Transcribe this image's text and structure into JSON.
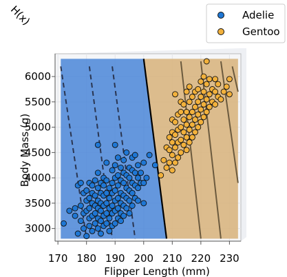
{
  "chart_data": {
    "type": "scatter",
    "title": "",
    "xlabel": "Flipper Length (mm)",
    "ylabel": "Body Mass (g)",
    "zlabel": "H(x)",
    "xlim": [
      169,
      234
    ],
    "ylim": [
      2750,
      6450
    ],
    "xticks": [
      170,
      180,
      190,
      200,
      210,
      220,
      230
    ],
    "yticks": [
      3000,
      3500,
      4000,
      4500,
      5000,
      5500,
      6000
    ],
    "xtick_labels": [
      "170",
      "180",
      "190",
      "200",
      "210",
      "220",
      "230"
    ],
    "ytick_labels": [
      "3000",
      "3500",
      "4000",
      "4500",
      "5000",
      "5500",
      "6000"
    ],
    "grid": true,
    "legend_position": "top-right",
    "decision_boundary": {
      "type": "linear",
      "points": [
        [
          200,
          6350
        ],
        [
          208,
          2800
        ]
      ]
    },
    "regions": [
      {
        "class": "Adelie",
        "color": "#4a86d8"
      },
      {
        "class": "Gentoo",
        "color": "#d7b27a"
      }
    ],
    "contour_lines": {
      "adelie_side": [
        [
          [
            171,
            6200
          ],
          [
            180,
            2800
          ]
        ],
        [
          [
            181,
            6200
          ],
          [
            189,
            2800
          ]
        ],
        [
          [
            189,
            6200
          ],
          [
            197,
            2800
          ]
        ]
      ],
      "gentoo_side": [
        [
          [
            213,
            6300
          ],
          [
            220,
            2800
          ]
        ],
        [
          [
            220,
            6300
          ],
          [
            227,
            2800
          ]
        ],
        [
          [
            227,
            6300
          ],
          [
            233,
            3900
          ]
        ],
        [
          [
            231,
            6200
          ],
          [
            233,
            5700
          ]
        ]
      ]
    },
    "series": [
      {
        "name": "Adelie",
        "color": "#1f77d4",
        "points": [
          [
            172,
            3100
          ],
          [
            174,
            3350
          ],
          [
            176,
            3400
          ],
          [
            176,
            3250
          ],
          [
            177,
            2900
          ],
          [
            177,
            3850
          ],
          [
            178,
            3150
          ],
          [
            178,
            3450
          ],
          [
            178,
            3900
          ],
          [
            179,
            3000
          ],
          [
            179,
            3300
          ],
          [
            179,
            3700
          ],
          [
            180,
            2850
          ],
          [
            180,
            3350
          ],
          [
            180,
            3550
          ],
          [
            180,
            3750
          ],
          [
            181,
            3050
          ],
          [
            181,
            3200
          ],
          [
            181,
            3400
          ],
          [
            181,
            3600
          ],
          [
            181,
            3900
          ],
          [
            182,
            2950
          ],
          [
            182,
            3250
          ],
          [
            182,
            3500
          ],
          [
            182,
            3700
          ],
          [
            182,
            3850
          ],
          [
            183,
            3100
          ],
          [
            183,
            3300
          ],
          [
            183,
            3450
          ],
          [
            183,
            3650
          ],
          [
            183,
            3950
          ],
          [
            184,
            3000
          ],
          [
            184,
            3200
          ],
          [
            184,
            3400
          ],
          [
            184,
            3550
          ],
          [
            184,
            3800
          ],
          [
            184,
            4100
          ],
          [
            184,
            4650
          ],
          [
            185,
            2900
          ],
          [
            185,
            3150
          ],
          [
            185,
            3350
          ],
          [
            185,
            3500
          ],
          [
            185,
            3700
          ],
          [
            185,
            3900
          ],
          [
            186,
            3050
          ],
          [
            186,
            3250
          ],
          [
            186,
            3450
          ],
          [
            186,
            3650
          ],
          [
            186,
            3850
          ],
          [
            186,
            4000
          ],
          [
            187,
            3100
          ],
          [
            187,
            3300
          ],
          [
            187,
            3500
          ],
          [
            187,
            3700
          ],
          [
            187,
            3950
          ],
          [
            187,
            4300
          ],
          [
            188,
            2950
          ],
          [
            188,
            3200
          ],
          [
            188,
            3400
          ],
          [
            188,
            3600
          ],
          [
            188,
            3800
          ],
          [
            189,
            3050
          ],
          [
            189,
            3300
          ],
          [
            189,
            3450
          ],
          [
            189,
            3700
          ],
          [
            189,
            3900
          ],
          [
            189,
            4150
          ],
          [
            190,
            3100
          ],
          [
            190,
            3350
          ],
          [
            190,
            3550
          ],
          [
            190,
            3750
          ],
          [
            190,
            4000
          ],
          [
            190,
            4250
          ],
          [
            190,
            4650
          ],
          [
            191,
            3200
          ],
          [
            191,
            3400
          ],
          [
            191,
            3600
          ],
          [
            191,
            3850
          ],
          [
            191,
            4050
          ],
          [
            191,
            4400
          ],
          [
            192,
            3150
          ],
          [
            192,
            3300
          ],
          [
            192,
            3500
          ],
          [
            192,
            3700
          ],
          [
            192,
            3950
          ],
          [
            192,
            4200
          ],
          [
            193,
            3250
          ],
          [
            193,
            3450
          ],
          [
            193,
            3650
          ],
          [
            193,
            3900
          ],
          [
            193,
            4100
          ],
          [
            193,
            4350
          ],
          [
            194,
            3400
          ],
          [
            194,
            3600
          ],
          [
            194,
            3800
          ],
          [
            194,
            4050
          ],
          [
            194,
            4500
          ],
          [
            195,
            3300
          ],
          [
            195,
            3550
          ],
          [
            195,
            3750
          ],
          [
            195,
            4000
          ],
          [
            195,
            4200
          ],
          [
            196,
            3450
          ],
          [
            196,
            3700
          ],
          [
            196,
            3900
          ],
          [
            196,
            4150
          ],
          [
            196,
            4400
          ],
          [
            197,
            3600
          ],
          [
            197,
            3850
          ],
          [
            197,
            4100
          ],
          [
            197,
            4450
          ],
          [
            198,
            3550
          ],
          [
            198,
            3800
          ],
          [
            198,
            4000
          ],
          [
            198,
            4250
          ],
          [
            199,
            3900
          ],
          [
            199,
            4100
          ],
          [
            200,
            3500
          ],
          [
            200,
            3900
          ],
          [
            200,
            4300
          ],
          [
            201,
            4000
          ],
          [
            202,
            4450
          ],
          [
            204,
            4250
          ]
        ]
      },
      {
        "name": "Gentoo",
        "color": "#f2b13c",
        "points": [
          [
            206,
            4050
          ],
          [
            207,
            4350
          ],
          [
            208,
            4200
          ],
          [
            208,
            4600
          ],
          [
            209,
            4300
          ],
          [
            209,
            4550
          ],
          [
            209,
            4800
          ],
          [
            210,
            4150
          ],
          [
            210,
            4450
          ],
          [
            210,
            4700
          ],
          [
            210,
            4900
          ],
          [
            210,
            5150
          ],
          [
            211,
            4300
          ],
          [
            211,
            4600
          ],
          [
            211,
            4850
          ],
          [
            211,
            5100
          ],
          [
            211,
            5650
          ],
          [
            212,
            4400
          ],
          [
            212,
            4700
          ],
          [
            212,
            4950
          ],
          [
            212,
            5250
          ],
          [
            213,
            4500
          ],
          [
            213,
            4750
          ],
          [
            213,
            5000
          ],
          [
            213,
            5300
          ],
          [
            213,
            5500
          ],
          [
            214,
            4650
          ],
          [
            214,
            4900
          ],
          [
            214,
            5150
          ],
          [
            214,
            5450
          ],
          [
            215,
            4550
          ],
          [
            215,
            4800
          ],
          [
            215,
            5050
          ],
          [
            215,
            5300
          ],
          [
            215,
            5700
          ],
          [
            216,
            4700
          ],
          [
            216,
            4950
          ],
          [
            216,
            5200
          ],
          [
            216,
            5500
          ],
          [
            216,
            5800
          ],
          [
            217,
            4800
          ],
          [
            217,
            5050
          ],
          [
            217,
            5300
          ],
          [
            217,
            5600
          ],
          [
            218,
            4900
          ],
          [
            218,
            5150
          ],
          [
            218,
            5400
          ],
          [
            218,
            5700
          ],
          [
            219,
            5000
          ],
          [
            219,
            5250
          ],
          [
            219,
            5500
          ],
          [
            219,
            5750
          ],
          [
            220,
            5100
          ],
          [
            220,
            5350
          ],
          [
            220,
            5600
          ],
          [
            220,
            5900
          ],
          [
            221,
            5200
          ],
          [
            221,
            5450
          ],
          [
            221,
            5700
          ],
          [
            221,
            6000
          ],
          [
            222,
            5300
          ],
          [
            222,
            5550
          ],
          [
            222,
            5850
          ],
          [
            222,
            6300
          ],
          [
            223,
            5400
          ],
          [
            223,
            5650
          ],
          [
            223,
            5950
          ],
          [
            224,
            5500
          ],
          [
            224,
            5750
          ],
          [
            225,
            5450
          ],
          [
            225,
            5700
          ],
          [
            225,
            5950
          ],
          [
            226,
            5600
          ],
          [
            226,
            5850
          ],
          [
            227,
            5550
          ],
          [
            228,
            5700
          ],
          [
            229,
            5800
          ],
          [
            230,
            5650
          ],
          [
            230,
            5950
          ]
        ]
      }
    ]
  }
}
